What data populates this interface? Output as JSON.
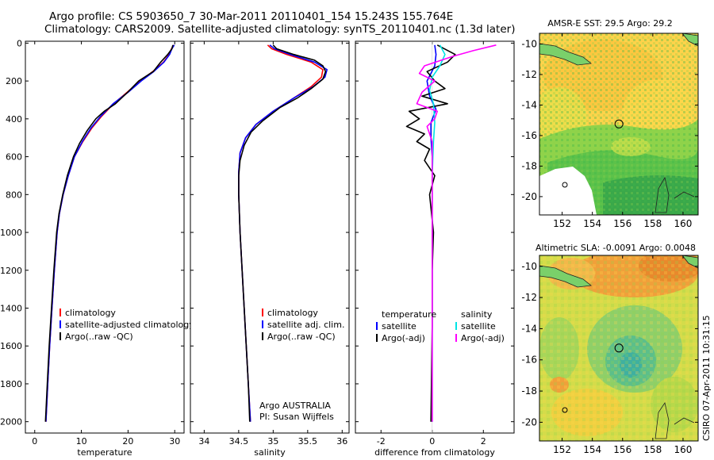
{
  "header": {
    "line1": "Argo profile: CS 5903650_7 30-Mar-2011 20110401_154 15.243S 155.764E",
    "line2": "Climatology: CARS2009. Satellite-adjusted climatology: synTS_20110401.nc (1.3d later)"
  },
  "footer_stamp": "CSIRO 07-Apr-2011 10:31:15",
  "colors": {
    "climatology": "#ff0000",
    "satellite": "#0000ff",
    "argo": "#000000",
    "sat_diff": "#00e5e5",
    "argo_adj": "#ff00ff"
  },
  "chart_data": [
    {
      "type": "line",
      "name": "temperature-profile",
      "xlabel": "temperature",
      "ylabel": "",
      "xlim": [
        -2,
        32
      ],
      "ylim": [
        2060,
        -10
      ],
      "y_inverted": true,
      "xticks": [
        0,
        10,
        20,
        30
      ],
      "yticks": [
        0,
        200,
        400,
        600,
        800,
        1000,
        1200,
        1400,
        1600,
        1800,
        2000
      ],
      "legend": {
        "location": "bottom-left",
        "entries": [
          "climatology",
          "satellite-adjusted climatology",
          "Argo(..raw -QC)"
        ]
      },
      "series": [
        {
          "name": "climatology",
          "color": "#ff0000",
          "points": [
            [
              29.8,
              10
            ],
            [
              29.3,
              30
            ],
            [
              28.8,
              60
            ],
            [
              27.6,
              100
            ],
            [
              25.3,
              150
            ],
            [
              22.6,
              200
            ],
            [
              19.8,
              260
            ],
            [
              16.9,
              320
            ],
            [
              14.2,
              390
            ],
            [
              12.2,
              450
            ],
            [
              10.3,
              520
            ],
            [
              8.5,
              600
            ],
            [
              7.2,
              700
            ],
            [
              6.1,
              800
            ],
            [
              5.3,
              900
            ],
            [
              4.8,
              1000
            ],
            [
              4.2,
              1200
            ],
            [
              3.7,
              1400
            ],
            [
              3.2,
              1600
            ],
            [
              2.8,
              1800
            ],
            [
              2.4,
              2000
            ]
          ]
        },
        {
          "name": "satellite-adjusted climatology",
          "color": "#0000ff",
          "points": [
            [
              29.9,
              10
            ],
            [
              29.4,
              30
            ],
            [
              28.9,
              60
            ],
            [
              27.7,
              100
            ],
            [
              25.5,
              150
            ],
            [
              22.8,
              200
            ],
            [
              20.0,
              260
            ],
            [
              16.8,
              320
            ],
            [
              14.0,
              390
            ],
            [
              12.0,
              450
            ],
            [
              10.2,
              520
            ],
            [
              8.5,
              600
            ],
            [
              7.2,
              700
            ],
            [
              6.1,
              800
            ],
            [
              5.3,
              900
            ],
            [
              4.8,
              1000
            ],
            [
              4.2,
              1200
            ],
            [
              3.7,
              1400
            ],
            [
              3.2,
              1600
            ],
            [
              2.8,
              1800
            ],
            [
              2.4,
              2000
            ]
          ]
        },
        {
          "name": "Argo(..raw -QC)",
          "color": "#000000",
          "points": [
            [
              29.6,
              10
            ],
            [
              29.4,
              30
            ],
            [
              28.5,
              60
            ],
            [
              27.0,
              100
            ],
            [
              25.4,
              150
            ],
            [
              22.3,
              200
            ],
            [
              19.9,
              260
            ],
            [
              17.3,
              320
            ],
            [
              14.9,
              360
            ],
            [
              13.1,
              400
            ],
            [
              11.3,
              460
            ],
            [
              9.6,
              530
            ],
            [
              8.3,
              600
            ],
            [
              7.0,
              700
            ],
            [
              6.0,
              800
            ],
            [
              5.2,
              900
            ],
            [
              4.7,
              1000
            ],
            [
              4.1,
              1200
            ],
            [
              3.6,
              1400
            ],
            [
              3.1,
              1600
            ],
            [
              2.7,
              1800
            ],
            [
              2.3,
              2000
            ]
          ]
        }
      ]
    },
    {
      "type": "line",
      "name": "salinity-profile",
      "xlabel": "salinity",
      "ylabel": "",
      "xlim": [
        33.8,
        36.1
      ],
      "ylim": [
        2060,
        -10
      ],
      "y_inverted": true,
      "xticks": [
        34,
        34.5,
        35,
        35.5,
        36
      ],
      "legend": {
        "location": "bottom-right",
        "entries": [
          "climatology",
          "satellite adj. clim.",
          "Argo(..raw -QC)"
        ]
      },
      "annotation": [
        "Argo AUSTRALIA",
        "PI: Susan Wijffels"
      ],
      "series": [
        {
          "name": "climatology",
          "color": "#ff0000",
          "points": [
            [
              34.92,
              10
            ],
            [
              34.98,
              30
            ],
            [
              35.2,
              60
            ],
            [
              35.55,
              100
            ],
            [
              35.72,
              140
            ],
            [
              35.7,
              180
            ],
            [
              35.55,
              230
            ],
            [
              35.3,
              290
            ],
            [
              35.0,
              360
            ],
            [
              34.75,
              430
            ],
            [
              34.6,
              500
            ],
            [
              34.52,
              580
            ],
            [
              34.5,
              680
            ],
            [
              34.5,
              800
            ],
            [
              34.52,
              1000
            ],
            [
              34.55,
              1200
            ],
            [
              34.58,
              1400
            ],
            [
              34.61,
              1600
            ],
            [
              34.64,
              1800
            ],
            [
              34.67,
              2000
            ]
          ]
        },
        {
          "name": "satellite adj. clim.",
          "color": "#0000ff",
          "points": [
            [
              34.95,
              10
            ],
            [
              35.02,
              30
            ],
            [
              35.25,
              60
            ],
            [
              35.6,
              100
            ],
            [
              35.78,
              140
            ],
            [
              35.75,
              180
            ],
            [
              35.58,
              230
            ],
            [
              35.3,
              290
            ],
            [
              35.0,
              360
            ],
            [
              34.75,
              430
            ],
            [
              34.6,
              500
            ],
            [
              34.52,
              580
            ],
            [
              34.5,
              680
            ],
            [
              34.5,
              800
            ],
            [
              34.52,
              1000
            ],
            [
              34.55,
              1200
            ],
            [
              34.58,
              1400
            ],
            [
              34.61,
              1600
            ],
            [
              34.64,
              1800
            ],
            [
              34.67,
              2000
            ]
          ]
        },
        {
          "name": "Argo(..raw -QC)",
          "color": "#000000",
          "points": [
            [
              35.0,
              10
            ],
            [
              35.05,
              30
            ],
            [
              35.3,
              60
            ],
            [
              35.6,
              90
            ],
            [
              35.72,
              120
            ],
            [
              35.76,
              150
            ],
            [
              35.72,
              190
            ],
            [
              35.55,
              240
            ],
            [
              35.35,
              290
            ],
            [
              35.1,
              340
            ],
            [
              34.85,
              410
            ],
            [
              34.68,
              470
            ],
            [
              34.58,
              540
            ],
            [
              34.52,
              620
            ],
            [
              34.5,
              700
            ],
            [
              34.5,
              800
            ],
            [
              34.52,
              1000
            ],
            [
              34.55,
              1200
            ],
            [
              34.58,
              1400
            ],
            [
              34.61,
              1600
            ],
            [
              34.64,
              1800
            ],
            [
              34.66,
              2000
            ]
          ]
        }
      ]
    },
    {
      "type": "line",
      "name": "difference-profile",
      "xlabel": "difference from climatology",
      "ylabel": "",
      "xlim": [
        -3,
        3.2
      ],
      "ylim": [
        2060,
        -10
      ],
      "y_inverted": true,
      "xticks": [
        -2,
        0,
        2
      ],
      "legend": {
        "location": "bottom",
        "temperature_header": "temperature",
        "temperature_entries": [
          "satellite",
          "Argo(-adj)"
        ],
        "salinity_header": "salinity",
        "salinity_entries": [
          "satellite",
          "Argo(-adj)"
        ]
      },
      "series": [
        {
          "name": "temperature satellite",
          "color": "#0000ff",
          "points": [
            [
              0.1,
              10
            ],
            [
              0.15,
              60
            ],
            [
              0.1,
              120
            ],
            [
              -0.2,
              200
            ],
            [
              -0.1,
              280
            ],
            [
              0.15,
              350
            ],
            [
              -0.05,
              420
            ],
            [
              -0.05,
              500
            ],
            [
              0,
              600
            ],
            [
              0,
              800
            ],
            [
              0,
              1000
            ],
            [
              0,
              1500
            ],
            [
              0,
              2000
            ]
          ]
        },
        {
          "name": "temperature Argo(-adj)",
          "color": "#000000",
          "points": [
            [
              0.2,
              10
            ],
            [
              0.9,
              60
            ],
            [
              0.6,
              100
            ],
            [
              -0.2,
              150
            ],
            [
              0.1,
              200
            ],
            [
              0.5,
              240
            ],
            [
              -0.4,
              280
            ],
            [
              0.6,
              320
            ],
            [
              -0.9,
              360
            ],
            [
              -0.5,
              400
            ],
            [
              -1.0,
              440
            ],
            [
              -0.3,
              480
            ],
            [
              -0.6,
              520
            ],
            [
              -0.1,
              560
            ],
            [
              -0.3,
              620
            ],
            [
              0.1,
              700
            ],
            [
              -0.1,
              800
            ],
            [
              0.05,
              1000
            ],
            [
              0,
              1200
            ],
            [
              0,
              1500
            ],
            [
              -0.05,
              2000
            ]
          ]
        },
        {
          "name": "salinity satellite",
          "color": "#00e5e5",
          "points": [
            [
              0.3,
              10
            ],
            [
              0.5,
              60
            ],
            [
              0.3,
              120
            ],
            [
              0,
              180
            ],
            [
              -0.1,
              250
            ],
            [
              0.05,
              320
            ],
            [
              0.1,
              420
            ],
            [
              0.05,
              520
            ],
            [
              0,
              700
            ],
            [
              0,
              1000
            ],
            [
              0,
              1500
            ],
            [
              0,
              2000
            ]
          ]
        },
        {
          "name": "salinity Argo(-adj)",
          "color": "#ff00ff",
          "points": [
            [
              2.5,
              10
            ],
            [
              1.6,
              40
            ],
            [
              0.8,
              70
            ],
            [
              -0.3,
              120
            ],
            [
              -0.5,
              160
            ],
            [
              0.1,
              200
            ],
            [
              -0.4,
              260
            ],
            [
              -0.6,
              320
            ],
            [
              0.2,
              360
            ],
            [
              0.1,
              400
            ],
            [
              -0.2,
              440
            ],
            [
              0,
              520
            ],
            [
              0,
              700
            ],
            [
              0,
              1000
            ],
            [
              0,
              1500
            ],
            [
              0,
              2000
            ]
          ]
        }
      ]
    },
    {
      "type": "heatmap",
      "name": "sst-map",
      "title": "AMSR-E SST: 29.5 Argo: 29.2",
      "xlim": [
        150.5,
        161
      ],
      "ylim": [
        -21.2,
        -9.3
      ],
      "xticks": [
        152,
        154,
        156,
        158,
        160
      ],
      "yticks": [
        -10,
        -12,
        -14,
        -16,
        -18,
        -20
      ],
      "argo_position": [
        155.76,
        -15.24
      ]
    },
    {
      "type": "heatmap",
      "name": "sla-map",
      "title": "Altimetric SLA: -0.0091 Argo: 0.0048",
      "xlim": [
        150.5,
        161
      ],
      "ylim": [
        -21.2,
        -9.3
      ],
      "xticks": [
        152,
        154,
        156,
        158,
        160
      ],
      "yticks": [
        -10,
        -12,
        -14,
        -16,
        -18,
        -20
      ],
      "argo_position": [
        155.76,
        -15.24
      ]
    }
  ]
}
